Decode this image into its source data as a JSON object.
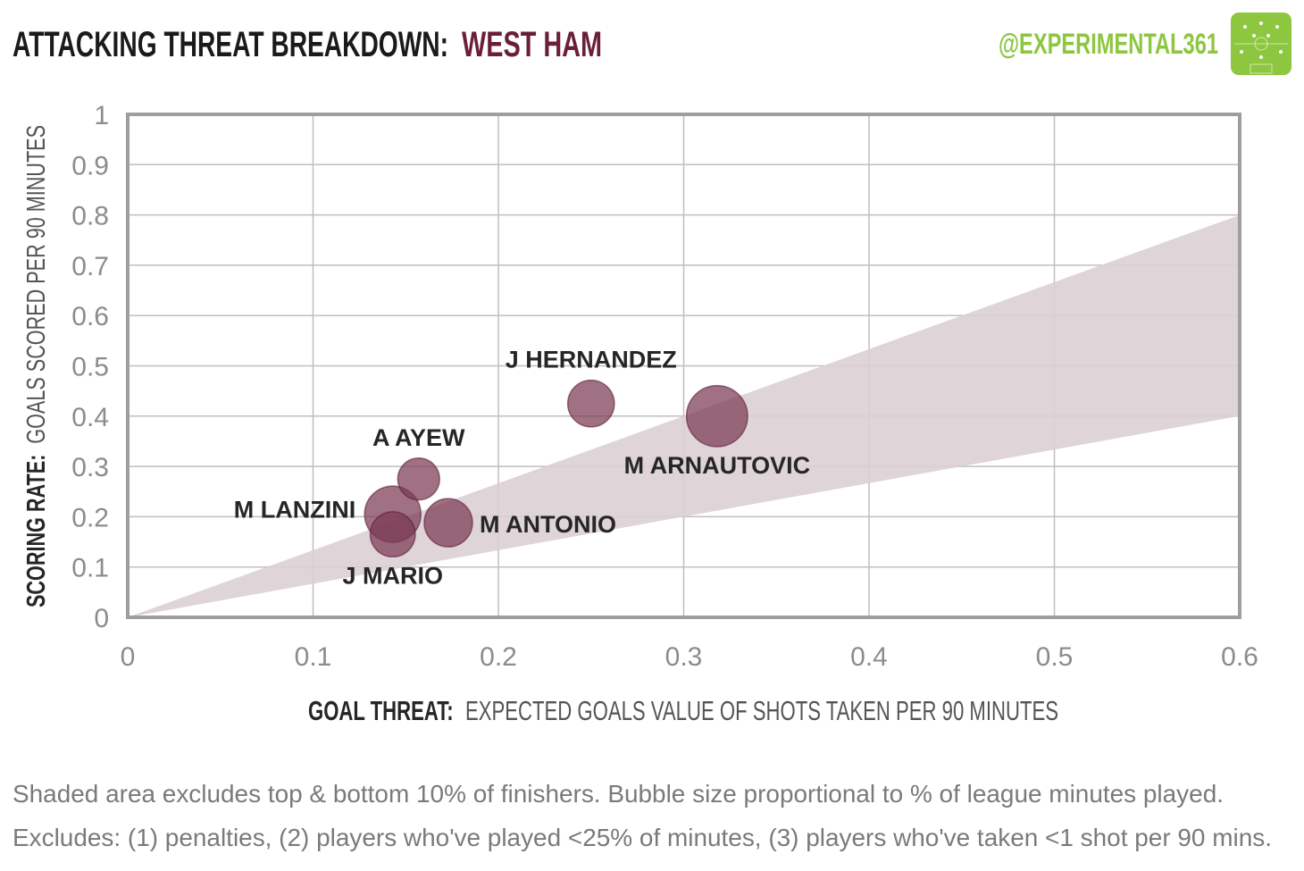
{
  "header": {
    "title_prefix": "ATTACKING THREAT BREAKDOWN:",
    "title_team": "WEST HAM",
    "handle": "@EXPERIMENTAL361",
    "logo_icon": "football-pitch-icon"
  },
  "footer": {
    "line1": "Shaded area excludes top & bottom  10% of finishers. Bubble size proportional to % of league minutes played.",
    "line2": "Excludes: (1) penalties, (2) players who've played <25% of minutes, (3) players who've taken <1 shot per 90 mins."
  },
  "colors": {
    "team": "#6b1e3a",
    "bubble": "#7a3a52",
    "band": "#dccfd4",
    "grid": "#bfbfbf",
    "frame": "#9e9e9e",
    "tick": "#8c8c8c",
    "brand": "#8dc63f",
    "label": "#262626"
  },
  "chart_data": {
    "type": "scatter",
    "xlabel_bold": "GOAL THREAT:",
    "xlabel_rest": "EXPECTED GOALS VALUE OF SHOTS TAKEN PER 90 MINUTES",
    "ylabel_bold": "SCORING RATE:",
    "ylabel_rest": "GOALS SCORED PER 90 MINUTES",
    "xlim": [
      0,
      0.6
    ],
    "ylim": [
      0,
      1
    ],
    "xticks": [
      0,
      0.1,
      0.2,
      0.3,
      0.4,
      0.5,
      0.6
    ],
    "yticks": [
      0,
      0.1,
      0.2,
      0.3,
      0.4,
      0.5,
      0.6,
      0.7,
      0.8,
      0.9,
      1
    ],
    "xtick_labels": [
      "0",
      "0.1",
      "0.2",
      "0.3",
      "0.4",
      "0.5",
      "0.6"
    ],
    "ytick_labels": [
      "0",
      "0.1",
      "0.2",
      "0.3",
      "0.4",
      "0.5",
      "0.6",
      "0.7",
      "0.8",
      "0.9",
      "1"
    ],
    "grid": true,
    "band": {
      "lower_slope": 0.667,
      "upper_slope": 1.333
    },
    "points": [
      {
        "name": "J HERNANDEZ",
        "x": 0.25,
        "y": 0.425,
        "minutes_share": 0.45,
        "label_pos": "above"
      },
      {
        "name": "M ARNAUTOVIC",
        "x": 0.318,
        "y": 0.4,
        "minutes_share": 0.9,
        "label_pos": "below"
      },
      {
        "name": "A AYEW",
        "x": 0.157,
        "y": 0.275,
        "minutes_share": 0.3,
        "label_pos": "above"
      },
      {
        "name": "M LANZINI",
        "x": 0.143,
        "y": 0.205,
        "minutes_share": 0.75,
        "label_pos": "left"
      },
      {
        "name": "M ANTONIO",
        "x": 0.173,
        "y": 0.188,
        "minutes_share": 0.5,
        "label_pos": "right"
      },
      {
        "name": "J MARIO",
        "x": 0.143,
        "y": 0.165,
        "minutes_share": 0.4,
        "label_pos": "below"
      }
    ]
  }
}
